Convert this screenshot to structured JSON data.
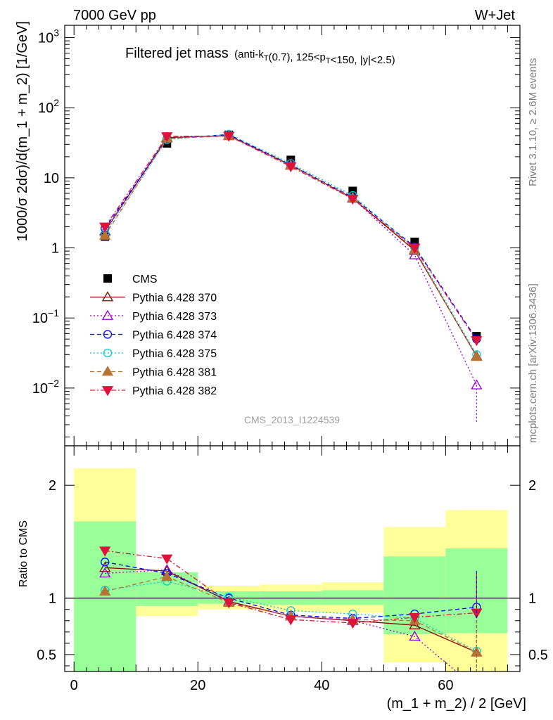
{
  "header": {
    "left": "7000 GeV pp",
    "right": "W+Jet"
  },
  "plot_title": {
    "main": "Filtered jet mass",
    "sub": "(anti-k_T(0.7), 125<p_T<150, |y|<2.5)"
  },
  "side_labels": {
    "rivet": "Rivet 3.1.10, ≥ 2.6M events",
    "mcplots": "mcplots.cern.ch [arXiv:1306.3436]"
  },
  "watermark": "CMS_2013_I1224539",
  "chart_data": [
    {
      "type": "line",
      "panel": "main",
      "ylabel": "1000/σ 2dσ)/d(m_1 + m_2) [1/GeV]",
      "yscale": "log",
      "ylim": [
        0.0015,
        1500
      ],
      "xlim": [
        -1.5,
        72
      ],
      "y_ticks": [
        "10^-2",
        "10^-1",
        "1",
        "10",
        "10^2",
        "10^3"
      ],
      "x": [
        5,
        15,
        25,
        35,
        45,
        55,
        65
      ],
      "series": [
        {
          "name": "CMS",
          "color": "#000000",
          "marker": "square-filled",
          "dash": "none",
          "values": [
            1.45,
            31.0,
            41.0,
            18.0,
            6.5,
            1.22,
            0.055
          ]
        },
        {
          "name": "Pythia 6.428 370",
          "color": "#8b0000",
          "marker": "triangle-open",
          "dash": "solid",
          "values": [
            1.73,
            37.5,
            40.0,
            15.2,
            5.1,
            0.92,
            0.0285
          ]
        },
        {
          "name": "Pythia 6.428 373",
          "color": "#9400d3",
          "marker": "triangle-open",
          "dash": "dotted",
          "values": [
            1.75,
            37.0,
            40.0,
            15.0,
            5.1,
            0.79,
            0.011
          ]
        },
        {
          "name": "Pythia 6.428 374",
          "color": "#0000ff",
          "marker": "circle-open",
          "dash": "dashed",
          "values": [
            1.9,
            36.0,
            41.5,
            15.3,
            5.3,
            1.04,
            0.05
          ]
        },
        {
          "name": "Pythia 6.428 375",
          "color": "#00ced1",
          "marker": "circle-open",
          "dash": "dotted",
          "values": [
            1.6,
            35.0,
            42.0,
            16.0,
            5.6,
            1.0,
            0.03
          ]
        },
        {
          "name": "Pythia 6.428 381",
          "color": "#b87333",
          "marker": "triangle-filled",
          "dash": "dashed",
          "values": [
            1.5,
            36.5,
            39.5,
            15.0,
            5.2,
            0.95,
            0.028
          ]
        },
        {
          "name": "Pythia 6.428 382",
          "color": "#dc143c",
          "marker": "triangle-down-filled",
          "dash": "dashdot",
          "values": [
            2.0,
            39.0,
            39.5,
            14.5,
            5.0,
            1.0,
            0.048
          ]
        }
      ]
    },
    {
      "type": "line",
      "panel": "ratio",
      "xlabel": "(m_1 + m_2) / 2 [GeV]",
      "ylabel": "Ratio to CMS",
      "ylim": [
        0.35,
        2.35
      ],
      "xlim": [
        -1.5,
        72
      ],
      "x_ticks": [
        "0",
        "20",
        "40",
        "60"
      ],
      "y_ticks": [
        "0.5",
        "1",
        "2"
      ],
      "bins": [
        [
          0,
          10
        ],
        [
          10,
          20
        ],
        [
          20,
          30
        ],
        [
          30,
          40
        ],
        [
          40,
          50
        ],
        [
          50,
          60
        ],
        [
          60,
          70
        ]
      ],
      "band_inner": [
        [
          0.35,
          1.68
        ],
        [
          0.93,
          1.23
        ],
        [
          0.95,
          1.06
        ],
        [
          0.94,
          1.06
        ],
        [
          0.94,
          1.07
        ],
        [
          0.68,
          1.37
        ],
        [
          0.69,
          1.44
        ]
      ],
      "band_outer": [
        [
          0.35,
          2.15
        ],
        [
          0.84,
          1.23
        ],
        [
          0.9,
          1.11
        ],
        [
          0.88,
          1.12
        ],
        [
          0.87,
          1.14
        ],
        [
          0.43,
          1.63
        ],
        [
          0.35,
          1.78
        ]
      ],
      "x": [
        5,
        15,
        25,
        35,
        45,
        55,
        65
      ],
      "series": [
        {
          "name": "Pythia 6.428 370",
          "values": [
            1.27,
            1.24,
            0.97,
            0.84,
            0.8,
            0.76,
            0.52
          ]
        },
        {
          "name": "Pythia 6.428 373",
          "values": [
            1.22,
            1.25,
            0.97,
            0.84,
            0.8,
            0.66,
            0.2
          ]
        },
        {
          "name": "Pythia 6.428 374",
          "values": [
            1.32,
            1.22,
            1.0,
            0.85,
            0.82,
            0.86,
            0.92
          ]
        },
        {
          "name": "Pythia 6.428 375",
          "values": [
            1.07,
            1.15,
            1.01,
            0.89,
            0.86,
            0.82,
            0.53
          ]
        },
        {
          "name": "Pythia 6.428 381",
          "values": [
            1.06,
            1.19,
            0.96,
            0.84,
            0.81,
            0.8,
            0.52
          ]
        },
        {
          "name": "Pythia 6.428 382",
          "values": [
            1.42,
            1.35,
            0.96,
            0.81,
            0.78,
            0.83,
            0.87
          ]
        }
      ]
    }
  ]
}
